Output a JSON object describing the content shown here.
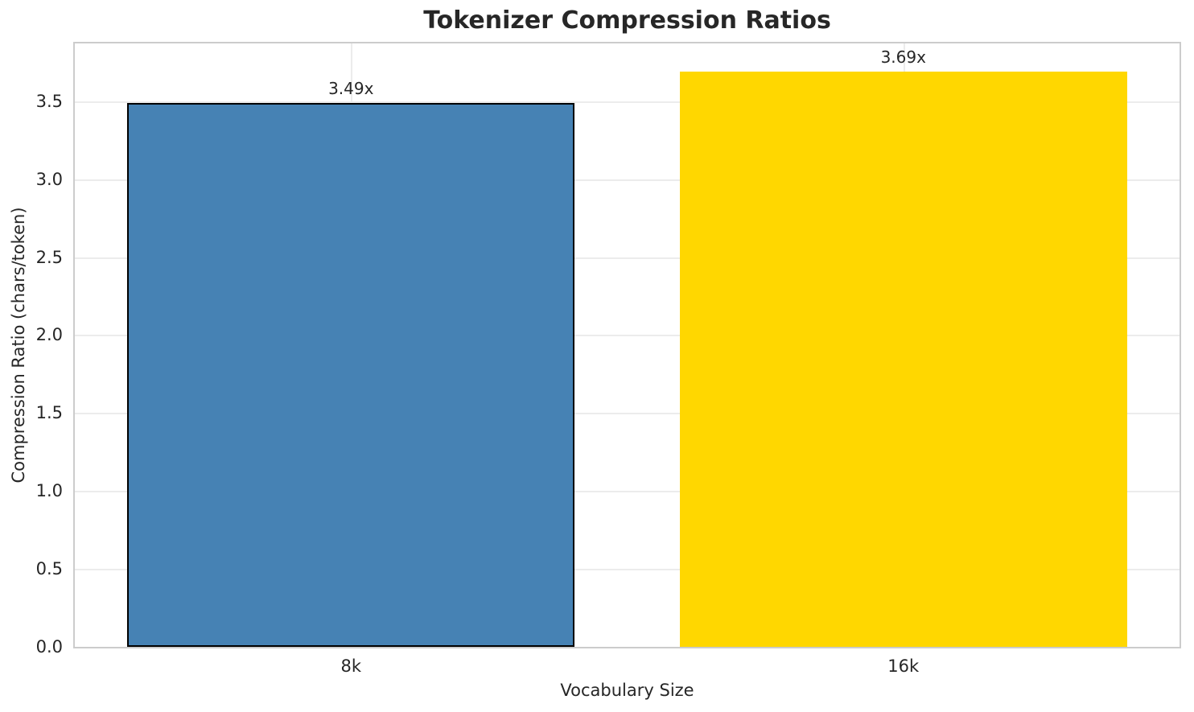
{
  "chart_data": {
    "type": "bar",
    "title": "Tokenizer Compression Ratios",
    "xlabel": "Vocabulary Size",
    "ylabel": "Compression Ratio (chars/token)",
    "categories": [
      "8k",
      "16k"
    ],
    "values": [
      3.49,
      3.69
    ],
    "bar_labels": [
      "3.49x",
      "3.69x"
    ],
    "bar_colors": [
      "#4682B4",
      "#FFD700"
    ],
    "bar_edge_colors": [
      "#000000",
      "none"
    ],
    "bar_width_fraction": 0.81,
    "ylim": [
      0,
      3.87
    ],
    "yticks": [
      0.0,
      0.5,
      1.0,
      1.5,
      2.0,
      2.5,
      3.0,
      3.5
    ],
    "ytick_labels": [
      "0.0",
      "0.5",
      "1.0",
      "1.5",
      "2.0",
      "2.5",
      "3.0",
      "3.5"
    ],
    "grid": true,
    "grid_color": "#ececec",
    "spine_color": "#cccccc",
    "text_color": "#262626",
    "background_color": "#ffffff",
    "legend_position": "none"
  }
}
